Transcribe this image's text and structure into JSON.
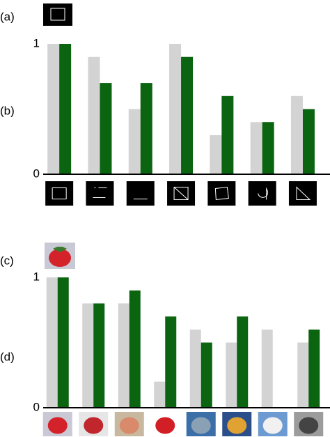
{
  "chart_data": [
    {
      "type": "bar",
      "reference_label": "(a)",
      "label": "(b)",
      "categories": [
        null,
        null,
        null,
        null,
        null,
        null,
        null
      ],
      "series": [
        {
          "color": "#d3d3d3",
          "values": [
            1,
            0.9,
            0.5,
            1,
            0.3,
            0.4,
            0.6
          ]
        },
        {
          "color": "#0b6410",
          "values": [
            1,
            0.7,
            0.7,
            0.9,
            0.6,
            0.4,
            0.5
          ]
        }
      ],
      "ylim": [
        0,
        1
      ],
      "yticks": [
        0,
        1
      ],
      "grid": false
    },
    {
      "type": "bar",
      "reference_label": "(c)",
      "label": "(d)",
      "categories": [
        null,
        null,
        null,
        null,
        null,
        null,
        null,
        null
      ],
      "series": [
        {
          "color": "#d3d3d3",
          "values": [
            1,
            0.8,
            0.8,
            0.2,
            0.6,
            0.5,
            0.6,
            0.5
          ]
        },
        {
          "color": "#0b6410",
          "values": [
            1,
            0.8,
            0.9,
            0.7,
            0.5,
            0.7,
            0,
            0.6
          ]
        }
      ],
      "ylim": [
        0,
        1
      ],
      "yticks": [
        0,
        1
      ],
      "grid": false
    }
  ]
}
